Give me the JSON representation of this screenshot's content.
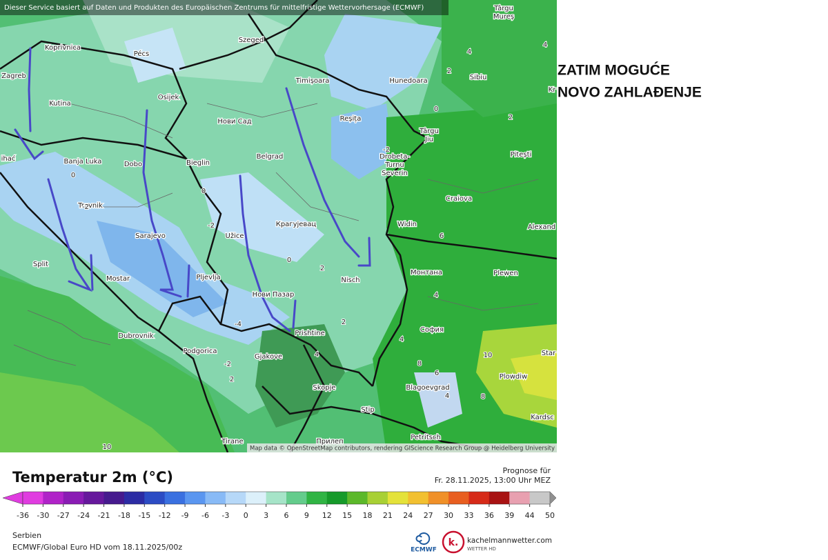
{
  "header": {
    "notice": "Dieser Service basiert auf Daten und Produkten des Europäischen Zentrums für mittelfristige Wettervorhersage (ECMWF)"
  },
  "map": {
    "cities": [
      "Koprivnica",
      "Pécs",
      "Szeged",
      "Târgu",
      "Mureș",
      "Zagreb",
      "Kutina",
      "Osijek",
      "Нови Сад",
      "Timișoara",
      "Hunedoara",
      "Sibiu",
      "Reșița",
      "Târgu",
      "Jiu",
      "Banja Luka",
      "Dobo",
      "Bieglin",
      "Belgrad",
      "Drobeta-",
      "Turnu",
      "Severin",
      "Pitești",
      "Travnik",
      "Craiova",
      "Sarajevo",
      "Užice",
      "Крагујевац",
      "Widin",
      "Alexand",
      "Split",
      "Mostar",
      "Pljevlja",
      "Nisch",
      "Монтана",
      "Plewen",
      "Нови Пазар",
      "София",
      "Dubrovnik",
      "Prishtine",
      "Podgorica",
      "Gjakove",
      "Star",
      "Plowdiw",
      "Skopje",
      "Blagoevgrad",
      "Stip",
      "Kardsc",
      "Tirane",
      "Прилеп",
      "Petritsch",
      "ihać",
      "Kr"
    ],
    "contour_labels": [
      4,
      2,
      4,
      0,
      2,
      -2,
      0,
      -2,
      0,
      -2,
      0,
      2,
      -4,
      2,
      4,
      6,
      4,
      8,
      6,
      10,
      4,
      8,
      4,
      -2,
      2,
      10
    ],
    "attribution": "Map data © OpenStreetMap contributors, rendering GIScience Research Group @ Heidelberg University"
  },
  "legend": {
    "title": "Temperatur 2m (°C)",
    "ticks": [
      -36,
      -30,
      -27,
      -24,
      -21,
      -18,
      -15,
      -12,
      -9,
      -6,
      -3,
      0,
      3,
      6,
      9,
      12,
      15,
      18,
      21,
      24,
      27,
      30,
      33,
      36,
      39,
      44,
      50
    ],
    "colors": [
      "#e03ce0",
      "#b023c8",
      "#8a1cb4",
      "#66189c",
      "#461a8e",
      "#2c2ca4",
      "#2c4cc4",
      "#3a70e0",
      "#5a96f0",
      "#88baf6",
      "#b6d8f8",
      "#dcf0fa",
      "#a6e4c8",
      "#64cc8c",
      "#30b444",
      "#169a2a",
      "#5cb82a",
      "#a8d034",
      "#e4e23a",
      "#f2c030",
      "#f09028",
      "#e85e20",
      "#d62a18",
      "#a81212",
      "#e8a0b0",
      "#c8c8c8"
    ]
  },
  "forecast": {
    "label": "Prognose für",
    "time": "Fr. 28.11.2025, 13:00 Uhr MEZ"
  },
  "footer": {
    "region": "Serbien",
    "model": "ECMWF/Global Euro HD vom  18.11.2025/00z",
    "ecmwf_logo": "ECMWF",
    "site_logo": "k.",
    "site": "kachelmannwetter.com",
    "site_sub": "WETTER HD"
  },
  "annotation": {
    "lines": [
      "ZATIM MOGUĆE",
      "NOVO ZAHLAĐENJE"
    ]
  }
}
